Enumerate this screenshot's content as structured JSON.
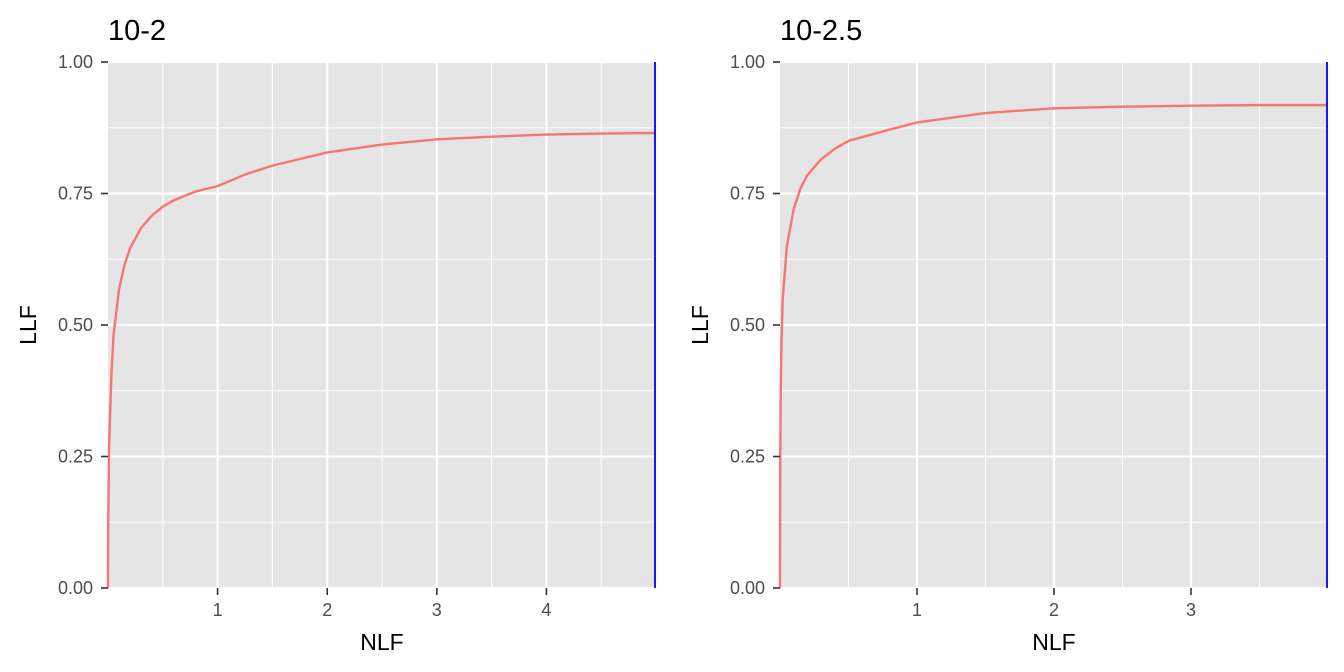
{
  "chart_data": [
    {
      "type": "line",
      "title": "10-2",
      "xlabel": "NLF",
      "ylabel": "LLF",
      "xlim": [
        0,
        5.0
      ],
      "ylim": [
        0,
        1
      ],
      "x_ticks": [
        1,
        2,
        3,
        4
      ],
      "x_tick_labels": [
        "1",
        "2",
        "3",
        "4"
      ],
      "y_ticks": [
        0,
        0.25,
        0.5,
        0.75,
        1
      ],
      "y_tick_labels": [
        "0.00",
        "0.25",
        "0.50",
        "0.75",
        "1.00"
      ],
      "grid": true,
      "vline_x": 5.0,
      "colors": {
        "curve": "#F8766D",
        "vline": "#0000FF",
        "panel": "#E5E5E5",
        "grid": "#FFFFFF"
      },
      "series": [
        {
          "x": [
            0,
            0.002,
            0.01,
            0.03,
            0.05,
            0.1,
            0.15,
            0.2,
            0.3,
            0.4,
            0.5,
            0.6,
            0.8,
            1.0,
            1.25,
            1.5,
            2.0,
            2.5,
            3.0,
            3.5,
            4.0,
            4.5,
            5.0
          ],
          "y": [
            0,
            0.12,
            0.27,
            0.4,
            0.48,
            0.567,
            0.614,
            0.645,
            0.684,
            0.708,
            0.725,
            0.737,
            0.754,
            0.764,
            0.786,
            0.803,
            0.828,
            0.843,
            0.853,
            0.858,
            0.862,
            0.864,
            0.865
          ]
        }
      ]
    },
    {
      "type": "line",
      "title": "10-2.5",
      "xlabel": "NLF",
      "ylabel": "LLF",
      "xlim": [
        0,
        4.0
      ],
      "ylim": [
        0,
        1
      ],
      "x_ticks": [
        1,
        2,
        3
      ],
      "x_tick_labels": [
        "1",
        "2",
        "3"
      ],
      "y_ticks": [
        0,
        0.25,
        0.5,
        0.75,
        1
      ],
      "y_tick_labels": [
        "0.00",
        "0.25",
        "0.50",
        "0.75",
        "1.00"
      ],
      "grid": true,
      "vline_x": 4.0,
      "colors": {
        "curve": "#F8766D",
        "vline": "#0000FF",
        "panel": "#E5E5E5",
        "grid": "#FFFFFF"
      },
      "series": [
        {
          "x": [
            0,
            0.002,
            0.005,
            0.01,
            0.02,
            0.05,
            0.1,
            0.15,
            0.2,
            0.3,
            0.4,
            0.5,
            0.75,
            1.0,
            1.5,
            2.0,
            2.5,
            3.0,
            3.5,
            4.0
          ],
          "y": [
            0,
            0.25,
            0.36,
            0.46,
            0.55,
            0.65,
            0.72,
            0.76,
            0.785,
            0.815,
            0.835,
            0.85,
            0.868,
            0.885,
            0.903,
            0.912,
            0.915,
            0.917,
            0.918,
            0.918
          ]
        }
      ]
    }
  ]
}
